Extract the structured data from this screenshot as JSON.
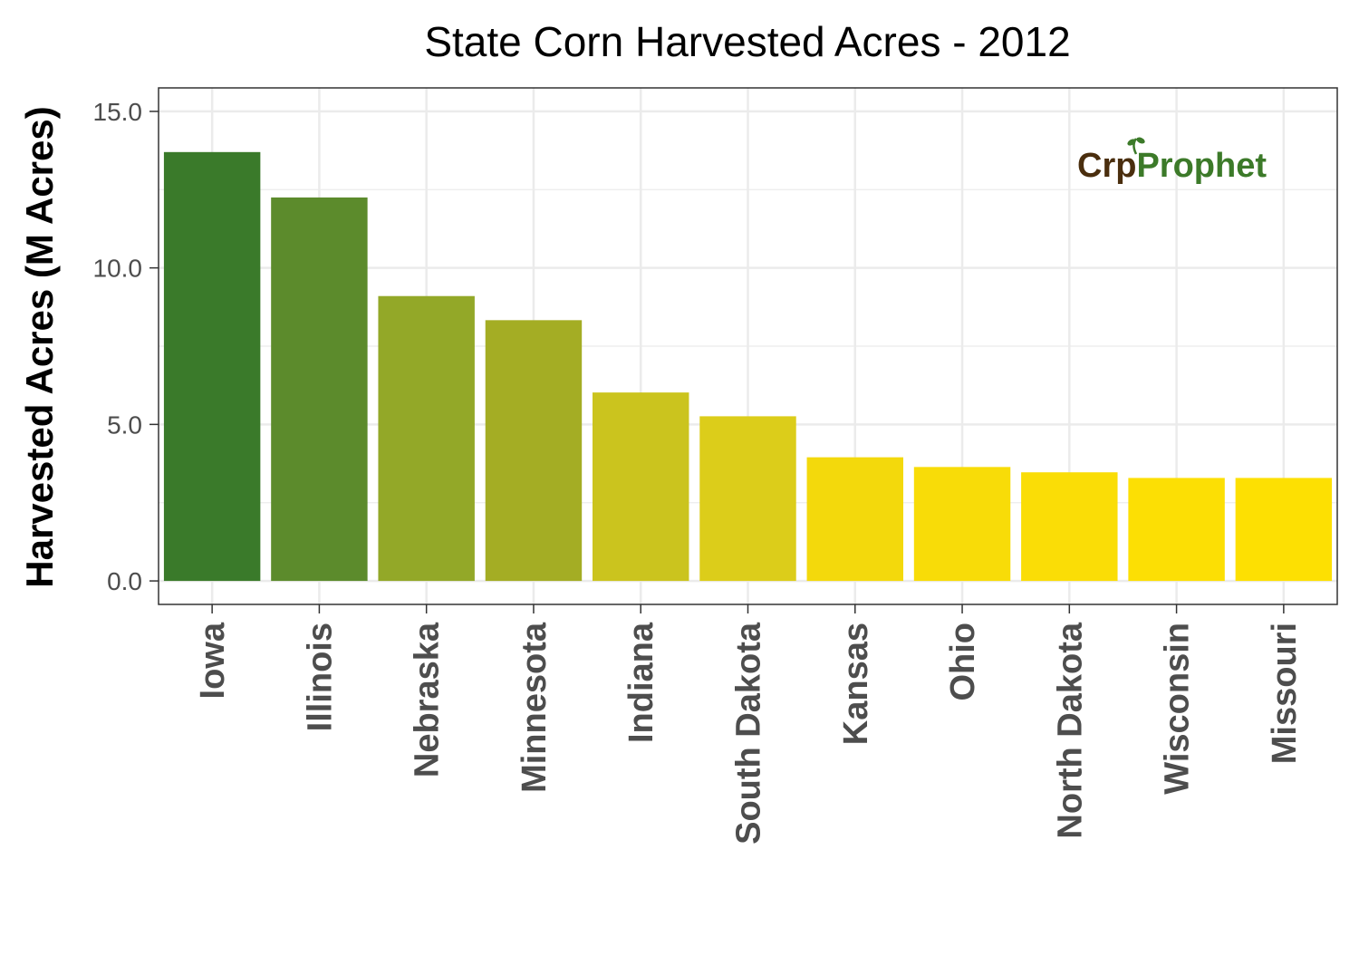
{
  "chart_data": {
    "type": "bar",
    "title": "State Corn Harvested Acres - 2012",
    "xlabel": "",
    "ylabel": "Harvested Acres (M Acres)",
    "categories": [
      "Iowa",
      "Illinois",
      "Nebraska",
      "Minnesota",
      "Indiana",
      "South Dakota",
      "Kansas",
      "Ohio",
      "North Dakota",
      "Wisconsin",
      "Missouri"
    ],
    "values": [
      13.7,
      12.25,
      9.1,
      8.33,
      6.02,
      5.26,
      3.95,
      3.64,
      3.47,
      3.29,
      3.29
    ],
    "bar_colors": [
      "#3a7a2a",
      "#5c8b2c",
      "#93a828",
      "#a4ad24",
      "#cbc41e",
      "#dccd1a",
      "#f3d90c",
      "#f8dc08",
      "#fadd06",
      "#fcdf04",
      "#fde002"
    ],
    "ylim": [
      -0.75,
      15.75
    ],
    "yticks": [
      "0.0",
      "5.0",
      "10.0",
      "15.0"
    ],
    "ytick_values": [
      0,
      5,
      10,
      15
    ],
    "grid": true,
    "legend": "none"
  },
  "watermark": {
    "logo_text_dark": "Cr",
    "logo_text_seed": "p",
    "logo_text_green": "Prophet",
    "dark_color": "#4a2e0e",
    "green_color": "#3c7a29"
  }
}
